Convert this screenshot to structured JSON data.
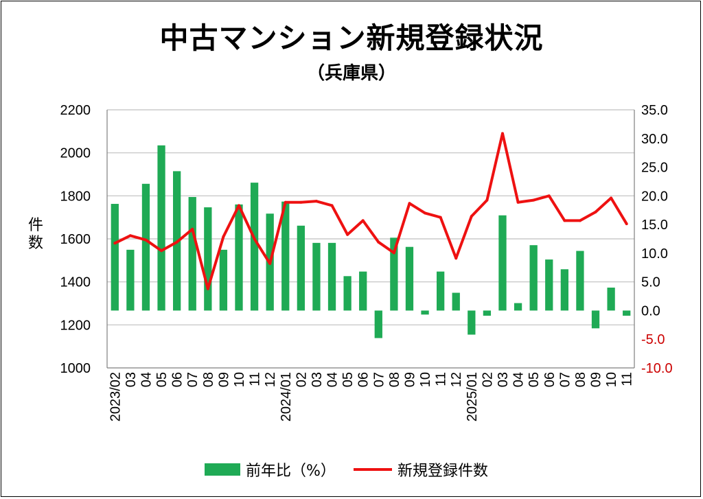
{
  "title": "中古マンション新規登録状況",
  "subtitle": "（兵庫県）",
  "ylabel_left": "件\n数",
  "legend": {
    "bar_label": "前年比（%）",
    "line_label": "新規登録件数"
  },
  "colors": {
    "bar": "#1faa55",
    "line": "#ee1111",
    "right_axis_negative": "#cc0000",
    "grid": "#bfbfbf",
    "axis": "#7f7f7f"
  },
  "chart_data": {
    "type": "bar+line",
    "categories": [
      "2023/02",
      "03",
      "04",
      "05",
      "06",
      "07",
      "08",
      "09",
      "10",
      "11",
      "12",
      "2024/01",
      "02",
      "03",
      "04",
      "05",
      "06",
      "07",
      "08",
      "09",
      "10",
      "11",
      "12",
      "2025/01",
      "02",
      "03",
      "04",
      "05",
      "06",
      "07",
      "08",
      "09",
      "10",
      "11"
    ],
    "left_axis": {
      "ylim": [
        1000,
        2200
      ],
      "ticks": [
        "1000",
        "1200",
        "1400",
        "1600",
        "1800",
        "2000",
        "2200"
      ]
    },
    "right_axis": {
      "ylim": [
        -10,
        35
      ],
      "ticks": [
        "35.0",
        "30.0",
        "25.0",
        "20.0",
        "15.0",
        "10.0",
        "5.0",
        "0.0",
        "-5.0",
        "-10.0"
      ]
    },
    "series": [
      {
        "name": "前年比（%）",
        "type": "bar",
        "axis": "right",
        "values": [
          18.6,
          10.6,
          22.1,
          28.8,
          24.3,
          19.8,
          18.0,
          10.6,
          18.5,
          22.3,
          16.9,
          19.0,
          14.8,
          11.8,
          11.8,
          6.0,
          6.8,
          -4.8,
          12.7,
          11.1,
          -0.7,
          6.8,
          3.1,
          -4.2,
          -0.9,
          16.6,
          1.3,
          11.4,
          8.9,
          7.2,
          10.4,
          -3.1,
          4.0,
          -0.9
        ]
      },
      {
        "name": "新規登録件数",
        "type": "line",
        "axis": "left",
        "values": [
          1580,
          1615,
          1595,
          1545,
          1585,
          1645,
          1368,
          1610,
          1755,
          1600,
          1485,
          1770,
          1770,
          1775,
          1755,
          1620,
          1685,
          1585,
          1535,
          1765,
          1720,
          1700,
          1510,
          1705,
          1780,
          2090,
          1770,
          1780,
          1800,
          1685,
          1685,
          1725,
          1790,
          1670
        ]
      }
    ]
  }
}
